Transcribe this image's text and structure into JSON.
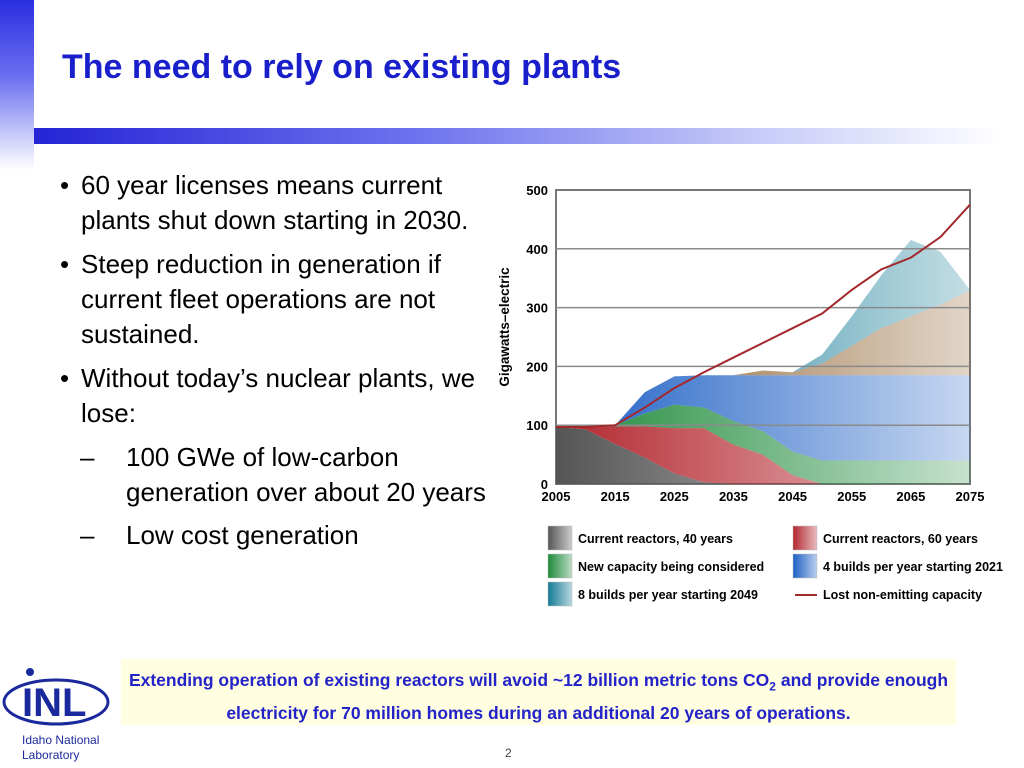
{
  "slide": {
    "title": "The need to rely on existing plants",
    "bullets": [
      {
        "text": "60 year licenses means current plants shut down starting in 2030."
      },
      {
        "text": "Steep reduction in generation if current fleet operations are not sustained."
      },
      {
        "text": "Without today’s nuclear plants, we lose:"
      }
    ],
    "sub_bullets": [
      {
        "text": "100 GWe of low-carbon generation over about 20 years"
      },
      {
        "text": "Low cost generation"
      }
    ],
    "bullet_mark": "•",
    "sub_mark": "–",
    "callout": {
      "part1": "Extending operation of existing reactors will avoid ~12 billion metric tons CO",
      "subscript": "2",
      "part2": " and provide enough electricity for 70 million homes during an additional 20 years of operations."
    },
    "logo": {
      "mark": "INL",
      "line1": "Idaho National",
      "line2": "Laboratory"
    },
    "page_number": "2"
  },
  "chart_data": {
    "type": "area",
    "ylabel": "Gigawatts–electric",
    "xlabel": "",
    "title": "",
    "x": [
      2005,
      2010,
      2015,
      2020,
      2025,
      2030,
      2035,
      2040,
      2045,
      2050,
      2055,
      2060,
      2065,
      2070,
      2075
    ],
    "xlim": [
      2005,
      2075
    ],
    "ylim": [
      0,
      500
    ],
    "yticks": [
      0,
      100,
      200,
      300,
      400,
      500
    ],
    "xticks": [
      2005,
      2015,
      2025,
      2035,
      2045,
      2055,
      2065,
      2075
    ],
    "grid": true,
    "legend_position": "bottom",
    "series": [
      {
        "name": "Current reactors, 40 years",
        "kind": "area",
        "color": "#555555",
        "values": [
          97,
          93,
          68,
          45,
          18,
          3,
          0,
          0,
          0,
          0,
          0,
          0,
          0,
          0,
          0
        ]
      },
      {
        "name": "Current reactors, 60 years",
        "kind": "area",
        "color": "#b3262e",
        "values": [
          0,
          3,
          30,
          53,
          77,
          92,
          67,
          50,
          15,
          0,
          0,
          0,
          0,
          0,
          0
        ]
      },
      {
        "name": "New capacity being considered",
        "kind": "area",
        "color": "#1e8a3a",
        "values": [
          0,
          0,
          2,
          22,
          40,
          35,
          40,
          40,
          40,
          40,
          40,
          40,
          40,
          40,
          40
        ]
      },
      {
        "name": "4 builds per year starting 2021",
        "kind": "area",
        "color": "#1d5fc4",
        "values": [
          0,
          0,
          0,
          36,
          48,
          55,
          78,
          95,
          130,
          145,
          145,
          145,
          145,
          145,
          145
        ]
      },
      {
        "name": "Lost non-emitting capacity",
        "kind": "area",
        "color": "#8a5a26",
        "values": [
          0,
          0,
          0,
          0,
          0,
          0,
          0,
          8,
          5,
          20,
          50,
          80,
          100,
          120,
          145
        ]
      },
      {
        "name": "8 builds per year starting 2049",
        "kind": "area",
        "color": "#127a96",
        "values": [
          0,
          0,
          0,
          0,
          0,
          0,
          0,
          0,
          0,
          15,
          50,
          90,
          130,
          90,
          0
        ]
      },
      {
        "name": "Lost non-emitting capacity",
        "kind": "line",
        "color": "#a3282c",
        "values": [
          97,
          97,
          100,
          130,
          163,
          190,
          215,
          240,
          265,
          290,
          330,
          365,
          385,
          420,
          475
        ]
      }
    ],
    "legend": [
      {
        "label": "Current reactors, 40 years",
        "color": "#555555",
        "kind": "box"
      },
      {
        "label": "Current reactors, 60 years",
        "color": "#b3262e",
        "kind": "box"
      },
      {
        "label": "New capacity being considered",
        "color": "#1e8a3a",
        "kind": "box"
      },
      {
        "label": "4 builds per year starting 2021",
        "color": "#1d5fc4",
        "kind": "box"
      },
      {
        "label": "8 builds per year starting 2049",
        "color": "#127a96",
        "kind": "box"
      },
      {
        "label": "Lost non-emitting capacity",
        "color": "#a3282c",
        "kind": "line"
      }
    ]
  }
}
